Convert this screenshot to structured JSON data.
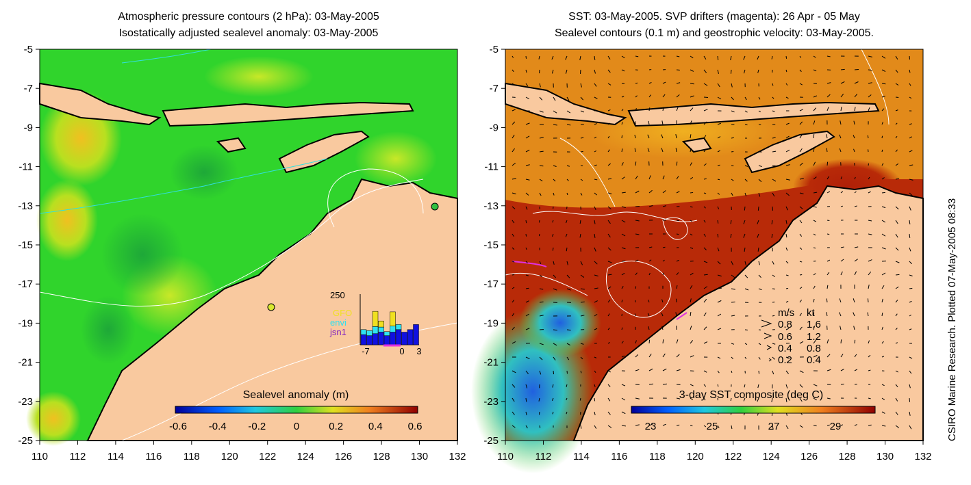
{
  "left_panel": {
    "title_line1": "Atmospheric pressure contours (2 hPa): 03-May-2005",
    "title_line2": "Isostatically adjusted sealevel anomaly: 03-May-2005",
    "y_ticks": [
      "-5",
      "-7",
      "-9",
      "-11",
      "-13",
      "-15",
      "-17",
      "-19",
      "-21",
      "-23",
      "-25"
    ],
    "x_ticks": [
      "110",
      "112",
      "114",
      "116",
      "118",
      "120",
      "122",
      "124",
      "126",
      "128",
      "130",
      "132"
    ],
    "colorbar_label": "Sealevel anomaly (m)",
    "colorbar_ticks": [
      "-0.6",
      "-0.4",
      "-0.2",
      "0",
      "0.2",
      "0.4",
      "0.6"
    ],
    "inset": {
      "y_max_label": "250",
      "x_labels": [
        "-7",
        "0",
        "3"
      ],
      "legend": [
        {
          "label": "GFO",
          "color": "#f0e020"
        },
        {
          "label": "envi",
          "color": "#30e0f0"
        },
        {
          "label": "jsn1",
          "color": "#8020c0"
        }
      ],
      "bars": [
        {
          "jsn1": 0.2,
          "envi": 0.1,
          "gfo": 0.0
        },
        {
          "jsn1": 0.18,
          "envi": 0.1,
          "gfo": 0.0
        },
        {
          "jsn1": 0.22,
          "envi": 0.14,
          "gfo": 0.3
        },
        {
          "jsn1": 0.25,
          "envi": 0.1,
          "gfo": 0.12
        },
        {
          "jsn1": 0.18,
          "envi": 0.08,
          "gfo": 0.0
        },
        {
          "jsn1": 0.25,
          "envi": 0.12,
          "gfo": 0.28
        },
        {
          "jsn1": 0.3,
          "envi": 0.1,
          "gfo": 0.0
        },
        {
          "jsn1": 0.25,
          "envi": 0.0,
          "gfo": 0.0
        },
        {
          "jsn1": 0.3,
          "envi": 0.0,
          "gfo": 0.0
        },
        {
          "jsn1": 0.4,
          "envi": 0.0,
          "gfo": 0.0
        }
      ]
    }
  },
  "right_panel": {
    "title_line1": "SST: 03-May-2005. SVP drifters (magenta): 26 Apr - 05 May",
    "title_line2": "Sealevel contours (0.1 m) and geostrophic velocity: 03-May-2005.",
    "y_ticks": [
      "-5",
      "-7",
      "-9",
      "-11",
      "-13",
      "-15",
      "-17",
      "-19",
      "-21",
      "-23",
      "-25"
    ],
    "x_ticks": [
      "110",
      "112",
      "114",
      "116",
      "118",
      "120",
      "122",
      "124",
      "126",
      "128",
      "130",
      "132"
    ],
    "colorbar_label": "3-day SST composite (deg C)",
    "colorbar_ticks": [
      "23",
      "25",
      "27",
      "29"
    ],
    "velocity_legend": {
      "header_ms": "m/s",
      "header_kt": "kt",
      "rows": [
        {
          "ms": "0.8",
          "kt": "1.6"
        },
        {
          "ms": "0.6",
          "kt": "1.2"
        },
        {
          "ms": "0.4",
          "kt": "0.8"
        },
        {
          "ms": "0.2",
          "kt": "0.4"
        }
      ]
    }
  },
  "side_label": "CSIRO Marine Research. Plotted 07-May-2005 08:33",
  "colors": {
    "land": "#f9c99f",
    "sla_base": "#2fd430",
    "sst_base": "#e28a1a",
    "sst_hot": "#b82a08"
  }
}
